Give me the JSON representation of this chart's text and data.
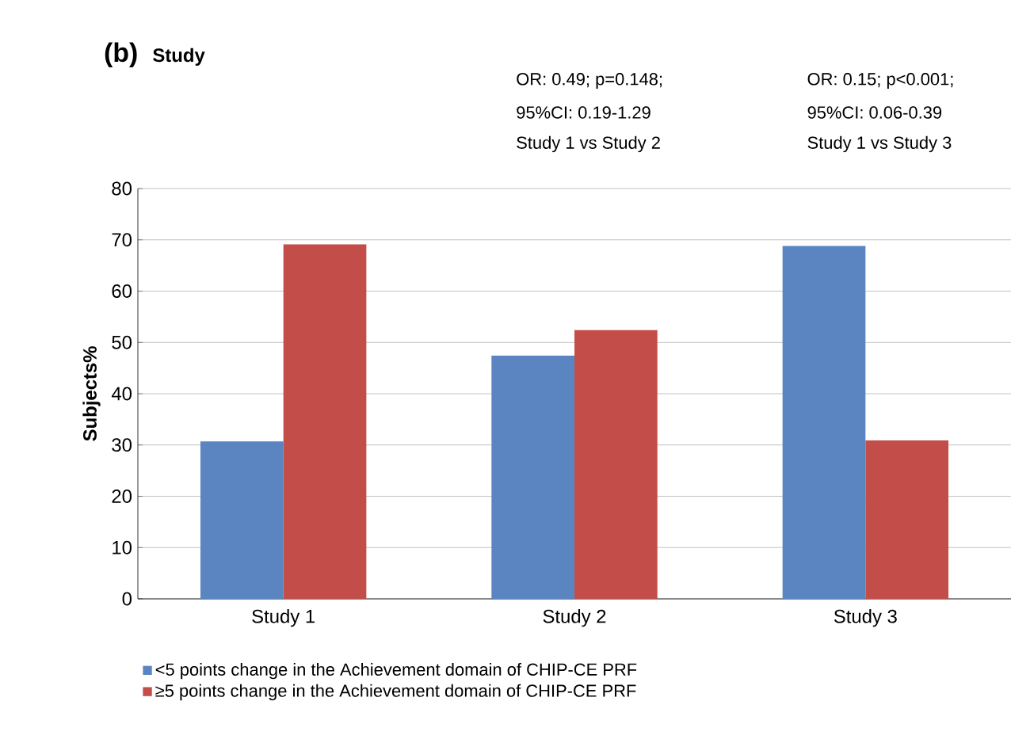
{
  "chart_data": {
    "type": "bar",
    "title": "(b)",
    "subtitle": "Study",
    "ylabel": "Subjects%",
    "categories": [
      "Study 1",
      "Study 2",
      "Study 3"
    ],
    "series": [
      {
        "name": "<5 points change in the Achievement domain of CHIP-CE PRF",
        "color": "#5b85c0",
        "values": [
          30.7,
          47.4,
          68.8
        ]
      },
      {
        "name": "≥5 points change in the Achievement domain of CHIP-CE PRF",
        "color": "#c34e49",
        "values": [
          69.1,
          52.4,
          30.9
        ]
      }
    ],
    "annotations": [
      "OR: 0.49; p=0.148;",
      "95%CI: 0.19-1.29",
      "Study 1 vs Study 2",
      "OR: 0.15; p<0.001;",
      "95%CI: 0.06-0.39",
      "Study 1 vs Study 3"
    ],
    "ylim": [
      0,
      80
    ],
    "yticks": [
      0,
      10,
      20,
      30,
      40,
      50,
      60,
      70,
      80
    ],
    "grid": "y",
    "legend": "bottom"
  }
}
